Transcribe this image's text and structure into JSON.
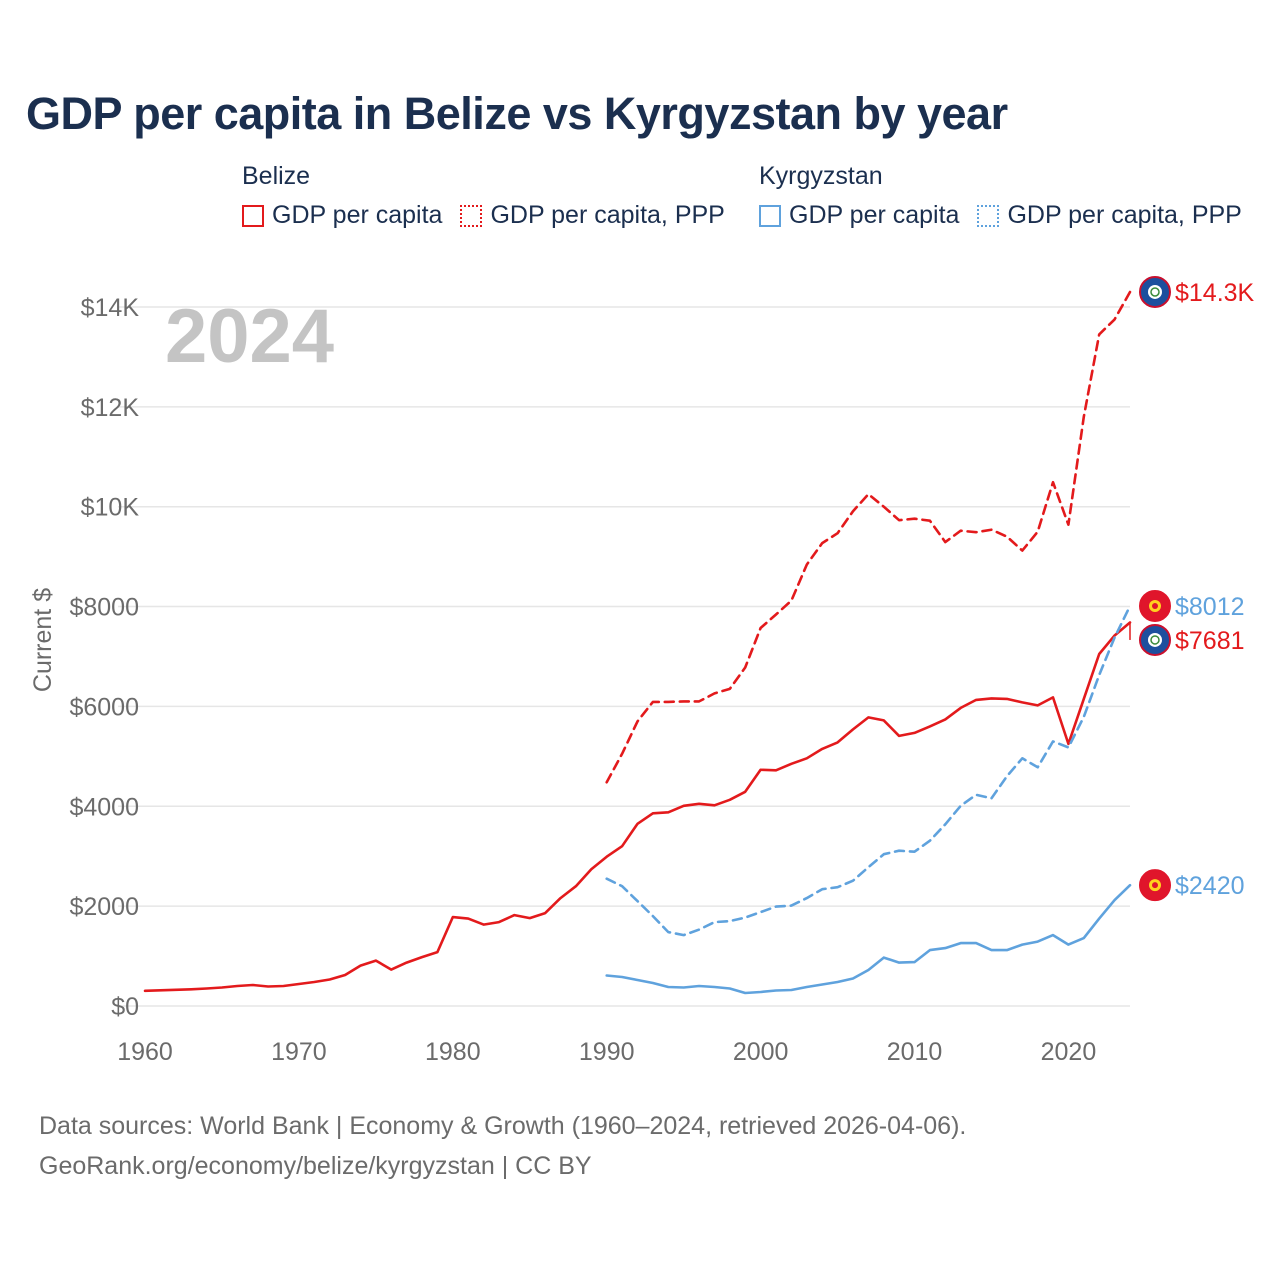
{
  "chart_data": {
    "type": "line",
    "title": "GDP per capita in Belize vs Kyrgyzstan by year",
    "ylabel": "Current $",
    "xlabel": "",
    "year_label": "2024",
    "xlim": [
      1960,
      2024
    ],
    "ylim": [
      0,
      14500
    ],
    "x_ticks": [
      1960,
      1970,
      1980,
      1990,
      2000,
      2010,
      2020
    ],
    "y_ticks": [
      {
        "value": 0,
        "label": "$0"
      },
      {
        "value": 2000,
        "label": "$2000"
      },
      {
        "value": 4000,
        "label": "$4000"
      },
      {
        "value": 6000,
        "label": "$6000"
      },
      {
        "value": 8000,
        "label": "$8000"
      },
      {
        "value": 10000,
        "label": "$10K"
      },
      {
        "value": 12000,
        "label": "$12K"
      },
      {
        "value": 14000,
        "label": "$14K"
      }
    ],
    "legend": {
      "groups": [
        {
          "title": "Belize",
          "items": [
            "GDP per capita",
            "GDP per capita, PPP"
          ]
        },
        {
          "title": "Kyrgyzstan",
          "items": [
            "GDP per capita",
            "GDP per capita, PPP"
          ]
        }
      ]
    },
    "colors": {
      "belize": "#e31a1c",
      "kyrgyzstan": "#5fa2dd"
    },
    "series": [
      {
        "country": "Belize",
        "name": "GDP per capita",
        "style": "solid",
        "color": "#e31a1c",
        "end_label": "$7681",
        "x": [
          1960,
          1961,
          1962,
          1963,
          1964,
          1965,
          1966,
          1967,
          1968,
          1969,
          1970,
          1971,
          1972,
          1973,
          1974,
          1975,
          1976,
          1977,
          1978,
          1979,
          1980,
          1981,
          1982,
          1983,
          1984,
          1985,
          1986,
          1987,
          1988,
          1989,
          1990,
          1991,
          1992,
          1993,
          1994,
          1995,
          1996,
          1997,
          1998,
          1999,
          2000,
          2001,
          2002,
          2003,
          2004,
          2005,
          2006,
          2007,
          2008,
          2009,
          2010,
          2011,
          2012,
          2013,
          2014,
          2015,
          2016,
          2017,
          2018,
          2019,
          2020,
          2021,
          2022,
          2023,
          2024
        ],
        "values": [
          305,
          315,
          325,
          335,
          350,
          370,
          400,
          420,
          390,
          400,
          440,
          480,
          530,
          620,
          810,
          910,
          730,
          870,
          980,
          1080,
          1780,
          1750,
          1630,
          1680,
          1820,
          1760,
          1860,
          2160,
          2400,
          2740,
          2990,
          3200,
          3650,
          3860,
          3880,
          4010,
          4050,
          4020,
          4130,
          4290,
          4730,
          4720,
          4850,
          4960,
          5150,
          5280,
          5540,
          5780,
          5720,
          5410,
          5470,
          5600,
          5740,
          5970,
          6130,
          6160,
          6150,
          6080,
          6020,
          6180,
          5250,
          6150,
          7050,
          7420,
          7681
        ]
      },
      {
        "country": "Belize",
        "name": "GDP per capita, PPP",
        "style": "dashed",
        "color": "#e31a1c",
        "end_label": "$14.3K",
        "x": [
          1990,
          1991,
          1992,
          1993,
          1994,
          1995,
          1996,
          1997,
          1998,
          1999,
          2000,
          2001,
          2002,
          2003,
          2004,
          2005,
          2006,
          2007,
          2008,
          2009,
          2010,
          2011,
          2012,
          2013,
          2014,
          2015,
          2016,
          2017,
          2018,
          2019,
          2020,
          2021,
          2022,
          2023,
          2024
        ],
        "values": [
          4480,
          5050,
          5700,
          6090,
          6090,
          6100,
          6100,
          6260,
          6350,
          6780,
          7570,
          7840,
          8120,
          8840,
          9270,
          9470,
          9910,
          10250,
          10000,
          9730,
          9760,
          9720,
          9290,
          9520,
          9490,
          9540,
          9400,
          9120,
          9500,
          10490,
          9640,
          11800,
          13450,
          13750,
          14300
        ]
      },
      {
        "country": "Kyrgyzstan",
        "name": "GDP per capita",
        "style": "solid",
        "color": "#5fa2dd",
        "end_label": "$2420",
        "x": [
          1990,
          1991,
          1992,
          1993,
          1994,
          1995,
          1996,
          1997,
          1998,
          1999,
          2000,
          2001,
          2002,
          2003,
          2004,
          2005,
          2006,
          2007,
          2008,
          2009,
          2010,
          2011,
          2012,
          2013,
          2014,
          2015,
          2016,
          2017,
          2018,
          2019,
          2020,
          2021,
          2022,
          2023,
          2024
        ],
        "values": [
          610,
          580,
          520,
          460,
          380,
          370,
          400,
          380,
          350,
          260,
          280,
          310,
          320,
          380,
          430,
          480,
          550,
          720,
          970,
          870,
          880,
          1120,
          1160,
          1260,
          1260,
          1120,
          1120,
          1230,
          1290,
          1420,
          1230,
          1360,
          1750,
          2120,
          2420
        ]
      },
      {
        "country": "Kyrgyzstan",
        "name": "GDP per capita, PPP",
        "style": "dashed",
        "color": "#5fa2dd",
        "end_label": "$8012",
        "x": [
          1990,
          1991,
          1992,
          1993,
          1994,
          1995,
          1996,
          1997,
          1998,
          1999,
          2000,
          2001,
          2002,
          2003,
          2004,
          2005,
          2006,
          2007,
          2008,
          2009,
          2010,
          2011,
          2012,
          2013,
          2014,
          2015,
          2016,
          2017,
          2018,
          2019,
          2020,
          2021,
          2022,
          2023,
          2024
        ],
        "values": [
          2550,
          2400,
          2100,
          1800,
          1480,
          1420,
          1530,
          1680,
          1700,
          1770,
          1880,
          1990,
          2010,
          2160,
          2340,
          2380,
          2510,
          2780,
          3040,
          3110,
          3090,
          3310,
          3640,
          4010,
          4230,
          4160,
          4600,
          4960,
          4780,
          5300,
          5180,
          5790,
          6630,
          7380,
          8012
        ]
      }
    ]
  },
  "footer": {
    "line1": "Data sources: World Bank | Economy & Growth (1960–2024, retrieved 2026-04-06).",
    "line2": "GeoRank.org/economy/belize/kyrgyzstan | CC BY"
  }
}
